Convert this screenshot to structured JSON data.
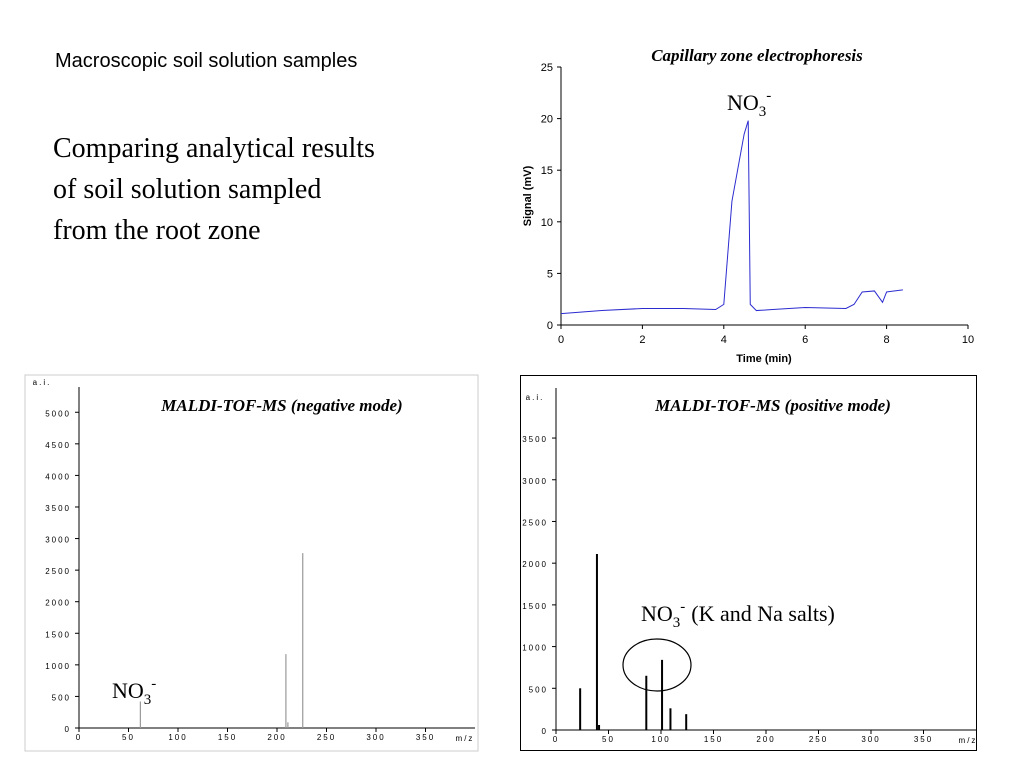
{
  "slide": {
    "heading": "Macroscopic soil solution samples",
    "text": [
      "Comparing analytical results",
      "of soil solution sampled",
      "from the root zone"
    ]
  },
  "chart_data": [
    {
      "type": "line",
      "title": "Capillary zone electrophoresis",
      "xlabel": "Time (min)",
      "ylabel": "Signal (mV)",
      "x": [
        0,
        1,
        2,
        3,
        3.8,
        4.0,
        4.2,
        4.5,
        4.6,
        4.65,
        4.8,
        5.2,
        6,
        7,
        7.2,
        7.4,
        7.7,
        7.9,
        8.0,
        8.4
      ],
      "values": [
        1.1,
        1.4,
        1.6,
        1.6,
        1.5,
        2.0,
        12,
        18.5,
        19.8,
        2.0,
        1.4,
        1.5,
        1.7,
        1.6,
        2.0,
        3.2,
        3.3,
        2.2,
        3.2,
        3.4
      ],
      "color": "#2b2bd0",
      "xlim": [
        0,
        10
      ],
      "xticks": [
        0,
        2,
        4,
        6,
        8,
        10
      ],
      "ylim": [
        0,
        25
      ],
      "yticks": [
        0,
        5,
        10,
        15,
        20,
        25
      ],
      "annotation": {
        "text": "NO",
        "sub": "3",
        "sup": "-"
      }
    },
    {
      "type": "stem",
      "title": "MALDI-TOF-MS (negative mode)",
      "xlabel": "m/z",
      "ylabel": "a.i.",
      "x": [
        62,
        209,
        211,
        226
      ],
      "values": [
        420,
        1170,
        90,
        2770
      ],
      "color": "#999999",
      "xlim": [
        0,
        400
      ],
      "xticks": [
        0,
        50,
        100,
        150,
        200,
        250,
        300,
        350
      ],
      "ylim": [
        0,
        5400
      ],
      "yticks": [
        0,
        500,
        1000,
        1500,
        2000,
        2500,
        3000,
        3500,
        4000,
        4500,
        5000
      ],
      "annotation": {
        "text": "NO",
        "sub": "3",
        "sup": "-"
      }
    },
    {
      "type": "stem",
      "title": "MALDI-TOF-MS (positive mode)",
      "xlabel": "m/z",
      "ylabel": "a.i.",
      "x": [
        23,
        39,
        41,
        86,
        101,
        109,
        124
      ],
      "values": [
        500,
        2110,
        60,
        650,
        840,
        260,
        190
      ],
      "color": "#000000",
      "xlim": [
        0,
        400
      ],
      "xticks": [
        0,
        50,
        100,
        150,
        200,
        250,
        300,
        350
      ],
      "ylim": [
        0,
        4100
      ],
      "yticks": [
        0,
        500,
        1000,
        1500,
        2000,
        2500,
        3000,
        3500
      ],
      "annotation": {
        "text": "NO",
        "sub": "3",
        "sup": "-",
        "after": "(K and Na salts)"
      }
    }
  ]
}
